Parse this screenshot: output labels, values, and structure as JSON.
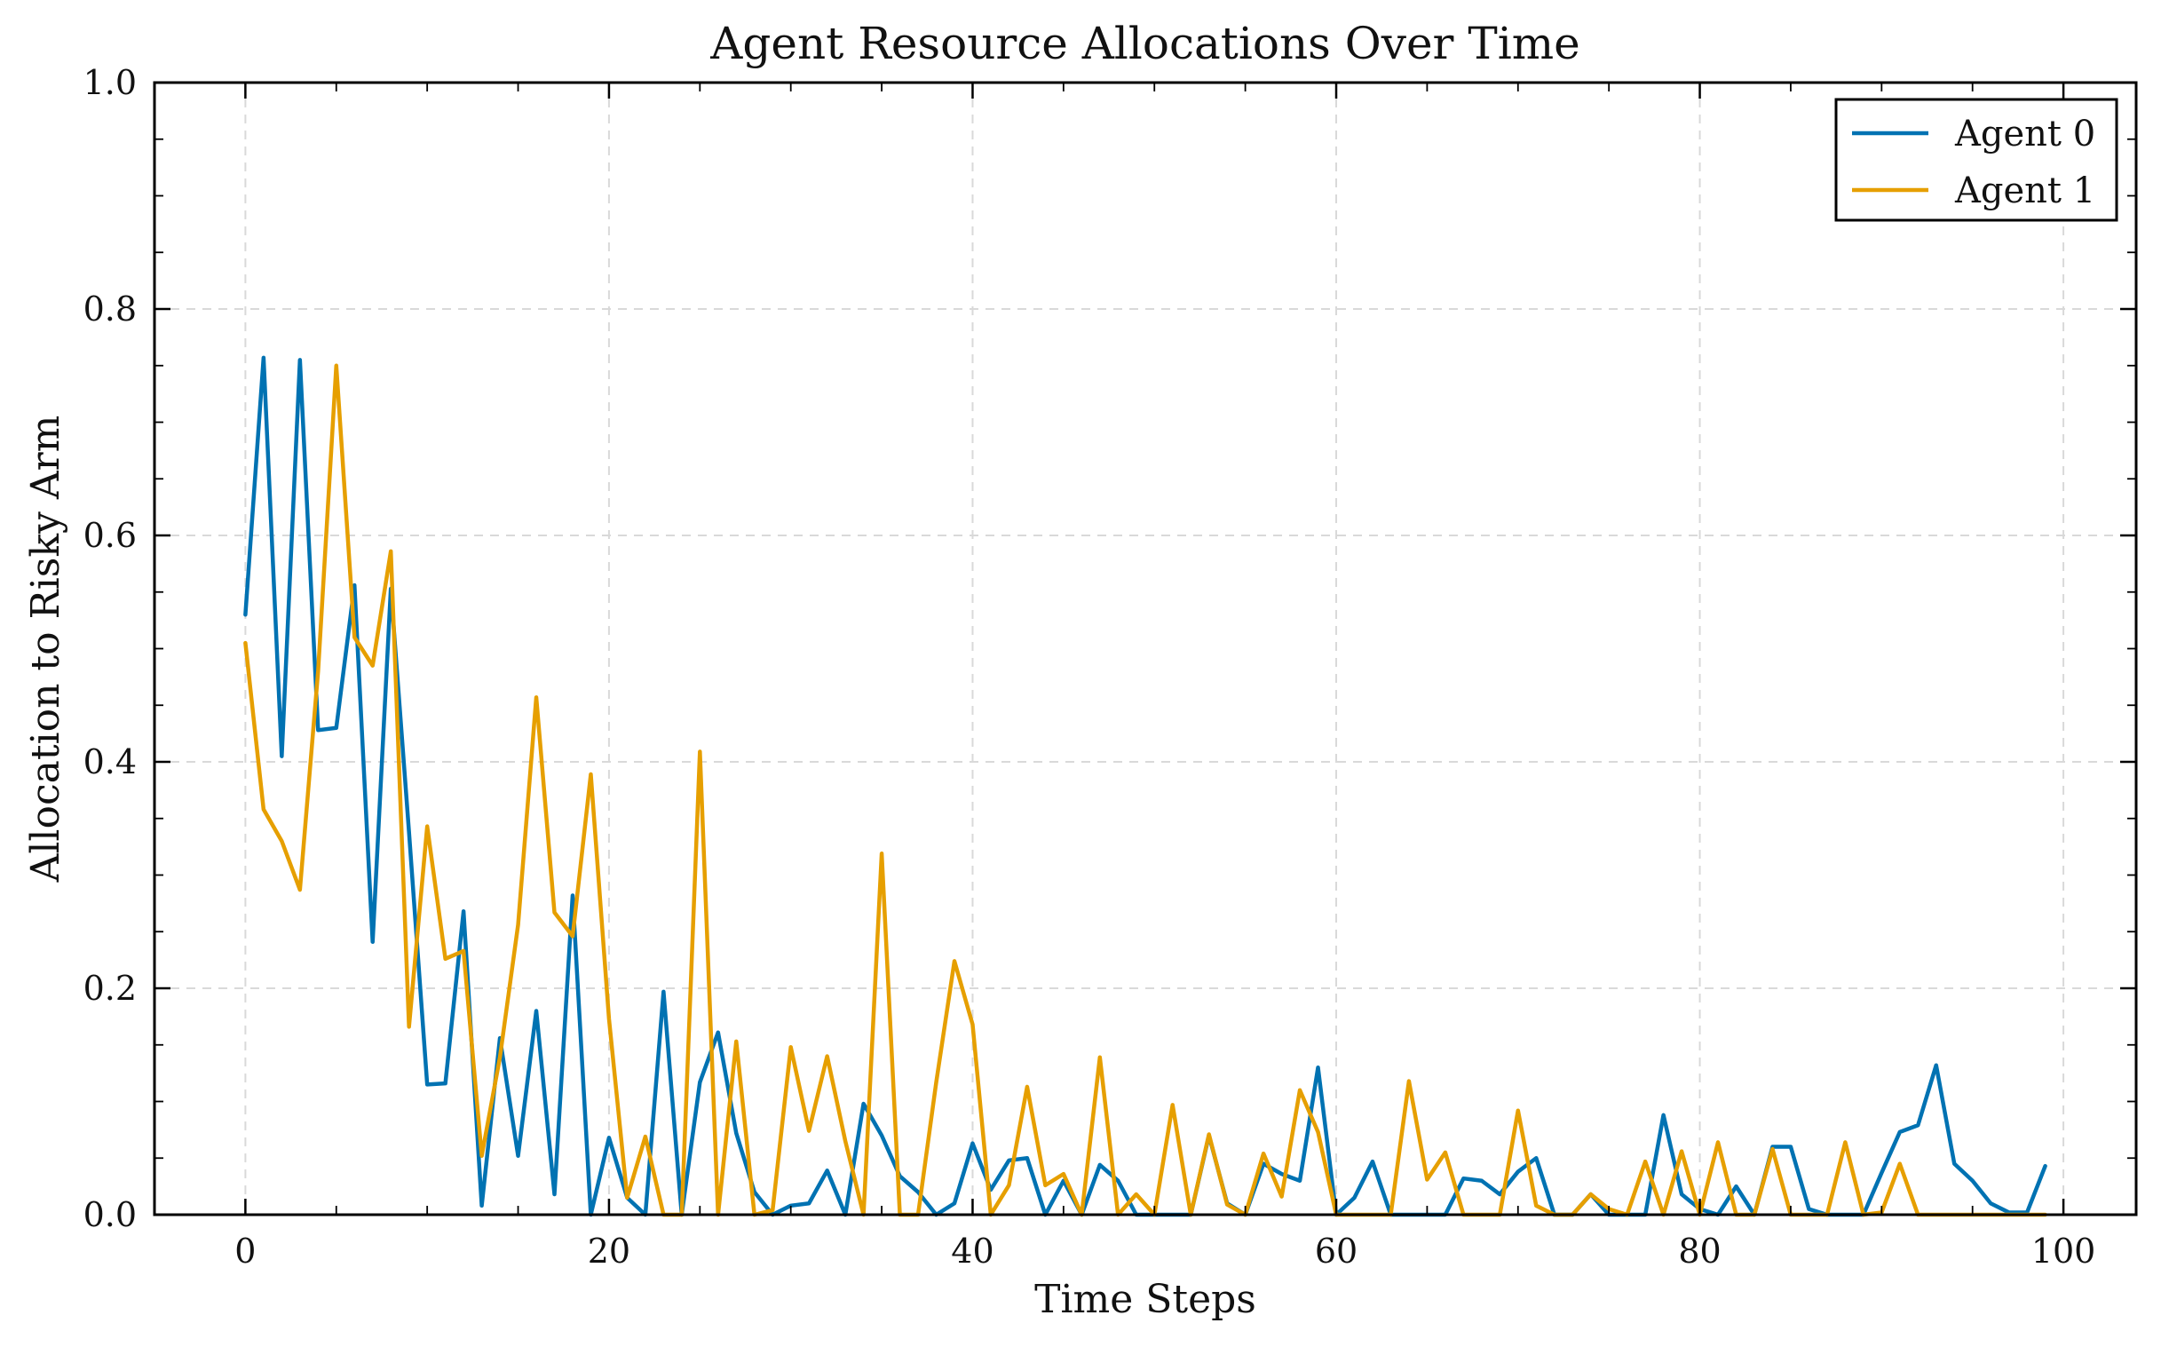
{
  "chart_data": {
    "type": "line",
    "title": "Agent Resource Allocations Over Time",
    "xlabel": "Time Steps",
    "ylabel": "Allocation to Risky Arm",
    "xlim": [
      -5,
      104
    ],
    "ylim": [
      0.0,
      1.0
    ],
    "xticks": [
      0,
      20,
      40,
      60,
      80,
      100
    ],
    "xtick_labels": [
      "0",
      "20",
      "40",
      "60",
      "80",
      "100"
    ],
    "yticks": [
      0.0,
      0.2,
      0.4,
      0.6,
      0.8,
      1.0
    ],
    "ytick_labels": [
      "0.0",
      "0.2",
      "0.4",
      "0.6",
      "0.8",
      "1.0"
    ],
    "grid": true,
    "legend": "top-right",
    "x": [
      0,
      1,
      2,
      3,
      4,
      5,
      6,
      7,
      8,
      9,
      10,
      11,
      12,
      13,
      14,
      15,
      16,
      17,
      18,
      19,
      20,
      21,
      22,
      23,
      24,
      25,
      26,
      27,
      28,
      29,
      30,
      31,
      32,
      33,
      34,
      35,
      36,
      37,
      38,
      39,
      40,
      41,
      42,
      43,
      44,
      45,
      46,
      47,
      48,
      49,
      50,
      51,
      52,
      53,
      54,
      55,
      56,
      57,
      58,
      59,
      60,
      61,
      62,
      63,
      64,
      65,
      66,
      67,
      68,
      69,
      70,
      71,
      72,
      73,
      74,
      75,
      76,
      77,
      78,
      79,
      80,
      81,
      82,
      83,
      84,
      85,
      86,
      87,
      88,
      89,
      90,
      91,
      92,
      93,
      94,
      95,
      96,
      97,
      98,
      99
    ],
    "series": [
      {
        "name": "Agent 0",
        "color": "#0072b2",
        "values": [
          0.53,
          0.757,
          0.405,
          0.755,
          0.428,
          0.43,
          0.556,
          0.241,
          0.553,
          0.338,
          0.115,
          0.116,
          0.268,
          0.008,
          0.156,
          0.052,
          0.18,
          0.018,
          0.282,
          0.0,
          0.068,
          0.015,
          0.0,
          0.197,
          0.0,
          0.117,
          0.161,
          0.072,
          0.02,
          0.0,
          0.008,
          0.01,
          0.039,
          0.0,
          0.098,
          0.07,
          0.034,
          0.02,
          0.0,
          0.01,
          0.063,
          0.022,
          0.048,
          0.05,
          0.0,
          0.03,
          0.0,
          0.044,
          0.03,
          0.0,
          0.0,
          0.0,
          0.0,
          0.07,
          0.01,
          0.0,
          0.045,
          0.036,
          0.03,
          0.13,
          0.0,
          0.015,
          0.047,
          0.0,
          0.0,
          0.0,
          0.0,
          0.032,
          0.03,
          0.018,
          0.038,
          0.05,
          0.0,
          0.0,
          0.018,
          0.0,
          0.0,
          0.0,
          0.088,
          0.018,
          0.005,
          0.0,
          0.025,
          0.0,
          0.06,
          0.06,
          0.005,
          0.0,
          0.0,
          0.0,
          0.037,
          0.073,
          0.079,
          0.132,
          0.045,
          0.03,
          0.01,
          0.002,
          0.002,
          0.043
        ]
      },
      {
        "name": "Agent 1",
        "color": "#e69f00",
        "values": [
          0.505,
          0.358,
          0.33,
          0.287,
          0.48,
          0.75,
          0.51,
          0.485,
          0.586,
          0.166,
          0.343,
          0.226,
          0.233,
          0.052,
          0.139,
          0.256,
          0.457,
          0.267,
          0.246,
          0.389,
          0.173,
          0.015,
          0.069,
          0.0,
          0.0,
          0.409,
          0.0,
          0.153,
          0.0,
          0.004,
          0.148,
          0.074,
          0.14,
          0.065,
          0.0,
          0.319,
          0.0,
          0.0,
          0.117,
          0.224,
          0.168,
          0.0,
          0.026,
          0.113,
          0.026,
          0.036,
          0.0,
          0.139,
          0.0,
          0.018,
          0.0,
          0.097,
          0.0,
          0.071,
          0.009,
          0.0,
          0.054,
          0.016,
          0.11,
          0.073,
          0.0,
          0.0,
          0.0,
          0.0,
          0.118,
          0.031,
          0.055,
          0.0,
          0.0,
          0.0,
          0.092,
          0.008,
          0.0,
          0.0,
          0.018,
          0.005,
          0.0,
          0.047,
          0.0,
          0.056,
          0.0,
          0.064,
          0.0,
          0.0,
          0.058,
          0.0,
          0.0,
          0.0,
          0.064,
          0.0,
          0.002,
          0.045,
          0.0,
          0.0,
          0.0,
          0.0,
          0.0,
          0.0,
          0.0,
          0.0
        ]
      }
    ]
  }
}
